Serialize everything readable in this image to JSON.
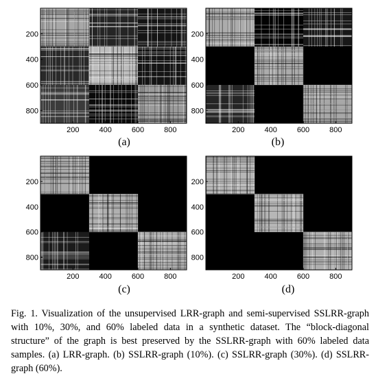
{
  "chart_data": [
    {
      "type": "heatmap",
      "label": "(a)",
      "xticks": [
        "200",
        "400",
        "600",
        "800"
      ],
      "yticks": [
        "200",
        "400",
        "600",
        "800"
      ],
      "xlim": [
        0,
        900
      ],
      "ylim": [
        0,
        900
      ],
      "block_boundaries": [
        300,
        600
      ],
      "diagonal_blocks": [
        0.78,
        0.88,
        0.72
      ],
      "off_diagonal_blocks": [
        [
          null,
          0.22,
          0.12
        ],
        [
          0.24,
          null,
          0.12
        ],
        [
          0.35,
          0.06,
          null
        ]
      ]
    },
    {
      "type": "heatmap",
      "label": "(b)",
      "xticks": [
        "200",
        "400",
        "600",
        "800"
      ],
      "yticks": [
        "200",
        "400",
        "600",
        "800"
      ],
      "xlim": [
        0,
        900
      ],
      "ylim": [
        0,
        900
      ],
      "block_boundaries": [
        300,
        600
      ],
      "diagonal_blocks": [
        0.8,
        0.8,
        0.78
      ],
      "off_diagonal_blocks": [
        [
          null,
          0.02,
          0.14
        ],
        [
          0.0,
          null,
          0.0
        ],
        [
          0.22,
          0.0,
          null
        ]
      ]
    },
    {
      "type": "heatmap",
      "label": "(c)",
      "xticks": [
        "200",
        "400",
        "600",
        "800"
      ],
      "yticks": [
        "200",
        "400",
        "600",
        "800"
      ],
      "xlim": [
        0,
        900
      ],
      "ylim": [
        0,
        900
      ],
      "block_boundaries": [
        300,
        600
      ],
      "diagonal_blocks": [
        0.8,
        0.82,
        0.8
      ],
      "off_diagonal_blocks": [
        [
          null,
          0.0,
          0.0
        ],
        [
          0.0,
          null,
          0.0
        ],
        [
          0.16,
          0.0,
          null
        ]
      ]
    },
    {
      "type": "heatmap",
      "label": "(d)",
      "xticks": [
        "200",
        "400",
        "600",
        "800"
      ],
      "yticks": [
        "200",
        "400",
        "600",
        "800"
      ],
      "xlim": [
        0,
        900
      ],
      "ylim": [
        0,
        900
      ],
      "block_boundaries": [
        300,
        600
      ],
      "diagonal_blocks": [
        0.85,
        0.85,
        0.82
      ],
      "off_diagonal_blocks": [
        [
          null,
          0.0,
          0.0
        ],
        [
          0.0,
          null,
          0.0
        ],
        [
          0.0,
          0.0,
          null
        ]
      ]
    }
  ],
  "caption": "Fig. 1.   Visualization of the unsupervised LRR-graph and semi-supervised SSLRR-graph with 10%, 30%, and 60% labeled data in a synthetic dataset. The “block-diagonal structure” of the graph is best preserved by the SSLRR-graph with 60% labeled data samples. (a) LRR-graph. (b) SSLRR-graph (10%). (c) SSLRR-graph (30%). (d) SSLRR-graph (60%)."
}
